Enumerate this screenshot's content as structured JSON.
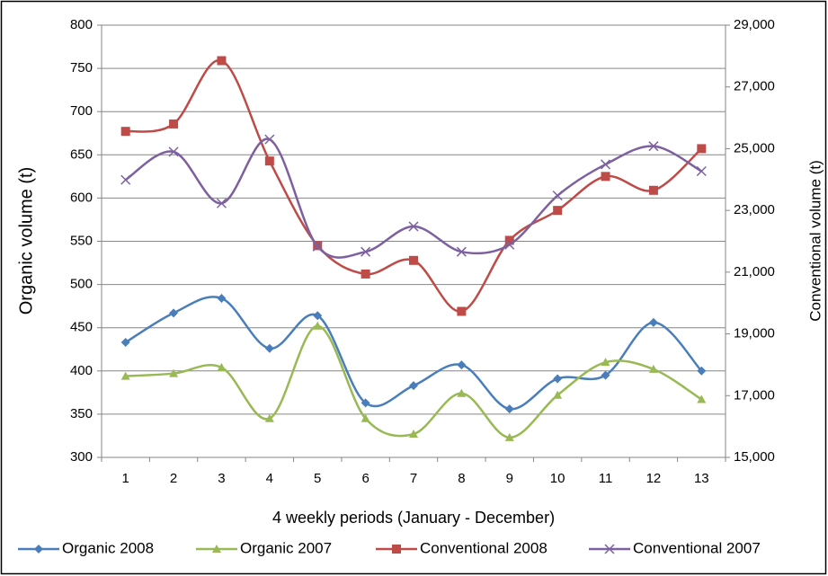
{
  "chart_data": {
    "type": "line",
    "x_label": "4 weekly periods (January - December)",
    "y_label": "Organic volume (t)",
    "y2_label": "Conventional volume (t)",
    "categories": [
      "1",
      "2",
      "3",
      "4",
      "5",
      "6",
      "7",
      "8",
      "9",
      "10",
      "11",
      "12",
      "13"
    ],
    "ylim": [
      300,
      800
    ],
    "yticks": [
      300,
      350,
      400,
      450,
      500,
      550,
      600,
      650,
      700,
      750,
      800
    ],
    "y2lim": [
      15000,
      29000
    ],
    "y2ticks": [
      {
        "value": 15000,
        "label": "15,000"
      },
      {
        "value": 17000,
        "label": "17,000"
      },
      {
        "value": 19000,
        "label": "19,000"
      },
      {
        "value": 21000,
        "label": "21,000"
      },
      {
        "value": 23000,
        "label": "23,000"
      },
      {
        "value": 25000,
        "label": "25,000"
      },
      {
        "value": 27000,
        "label": "27,000"
      },
      {
        "value": 29000,
        "label": "29,000"
      }
    ],
    "grid": true,
    "smooth": true,
    "legend": "bottom",
    "series": [
      {
        "name": "Organic 2008",
        "color": "#4a7ebb",
        "marker": "diamond",
        "values": [
          433,
          467,
          484,
          426,
          464,
          363,
          383,
          407,
          356,
          391,
          395,
          456,
          400
        ]
      },
      {
        "name": "Organic 2007",
        "color": "#98b954",
        "marker": "triangle",
        "values": [
          394,
          397,
          404,
          345,
          452,
          345,
          327,
          374,
          323,
          372,
          410,
          402,
          367
        ]
      },
      {
        "name": "Conventional 2008",
        "color": "#be4b48",
        "marker": "square",
        "axis": "y2",
        "values": [
          25560,
          25800,
          27850,
          24600,
          21860,
          20940,
          21380,
          19730,
          22030,
          23000,
          24100,
          23650,
          25000
        ]
      },
      {
        "name": "Conventional 2007",
        "color": "#7d60a0",
        "marker": "x",
        "axis": "y2",
        "values": [
          23990,
          24900,
          23230,
          25300,
          21830,
          21660,
          22480,
          21660,
          21890,
          23480,
          24490,
          25080,
          24270
        ]
      }
    ]
  }
}
